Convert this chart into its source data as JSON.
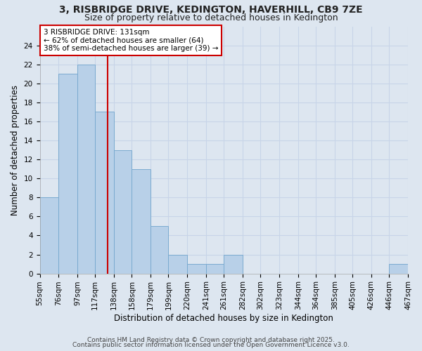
{
  "title": "3, RISBRIDGE DRIVE, KEDINGTON, HAVERHILL, CB9 7ZE",
  "subtitle": "Size of property relative to detached houses in Kedington",
  "xlabel": "Distribution of detached houses by size in Kedington",
  "ylabel": "Number of detached properties",
  "bins": [
    55,
    76,
    97,
    117,
    138,
    158,
    179,
    199,
    220,
    241,
    261,
    282,
    302,
    323,
    344,
    364,
    385,
    405,
    426,
    446,
    467
  ],
  "bin_labels": [
    "55sqm",
    "76sqm",
    "97sqm",
    "117sqm",
    "138sqm",
    "158sqm",
    "179sqm",
    "199sqm",
    "220sqm",
    "241sqm",
    "261sqm",
    "282sqm",
    "302sqm",
    "323sqm",
    "344sqm",
    "364sqm",
    "385sqm",
    "405sqm",
    "426sqm",
    "446sqm",
    "467sqm"
  ],
  "values": [
    8,
    21,
    22,
    17,
    13,
    11,
    5,
    2,
    1,
    1,
    2,
    0,
    0,
    0,
    0,
    0,
    0,
    0,
    0,
    1
  ],
  "bar_color": "#b8d0e8",
  "bar_edge_color": "#7aaad0",
  "vline_x": 131,
  "vline_color": "#cc0000",
  "annotation_text": "3 RISBRIDGE DRIVE: 131sqm\n← 62% of detached houses are smaller (64)\n38% of semi-detached houses are larger (39) →",
  "annotation_box_color": "#ffffff",
  "annotation_border_color": "#cc0000",
  "ylim": [
    0,
    26
  ],
  "yticks": [
    0,
    2,
    4,
    6,
    8,
    10,
    12,
    14,
    16,
    18,
    20,
    22,
    24
  ],
  "grid_color": "#c8d4e8",
  "bg_color": "#dde6f0",
  "footer_line1": "Contains HM Land Registry data © Crown copyright and database right 2025.",
  "footer_line2": "Contains public sector information licensed under the Open Government Licence v3.0.",
  "title_fontsize": 10,
  "subtitle_fontsize": 9,
  "axis_label_fontsize": 8.5,
  "tick_fontsize": 7.5,
  "annotation_fontsize": 7.5,
  "footer_fontsize": 6.5
}
